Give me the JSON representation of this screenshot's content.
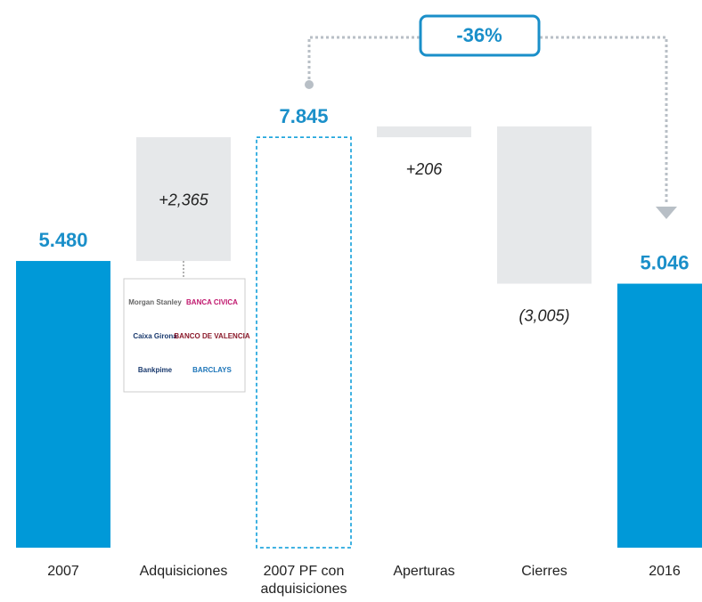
{
  "chart_data": {
    "type": "waterfall",
    "categories": [
      "2007",
      "Adquisiciones",
      "2007 PF con adquisiciones",
      "Aperturas",
      "Cierres",
      "2016"
    ],
    "values": [
      5480,
      2365,
      7845,
      206,
      -3005,
      5046
    ],
    "value_labels": [
      "5.480",
      "+2,365",
      "7.845",
      "+206",
      "(3,005)",
      "5.046"
    ],
    "measure": [
      "total",
      "relative",
      "total",
      "relative",
      "relative",
      "total"
    ],
    "colors": [
      "#0099d8",
      "#e6e8ea",
      "#0099d8",
      "#e6e8ea",
      "#e6e8ea",
      "#0099d8"
    ],
    "dashed": [
      false,
      false,
      true,
      false,
      false,
      false
    ],
    "annotation": "-36%",
    "logos": [
      "Morgan Stanley",
      "BANCA CIVICA",
      "Caixa Girona",
      "BANCO DE VALENCIA",
      "Bankpime",
      "BARCLAYS"
    ]
  }
}
